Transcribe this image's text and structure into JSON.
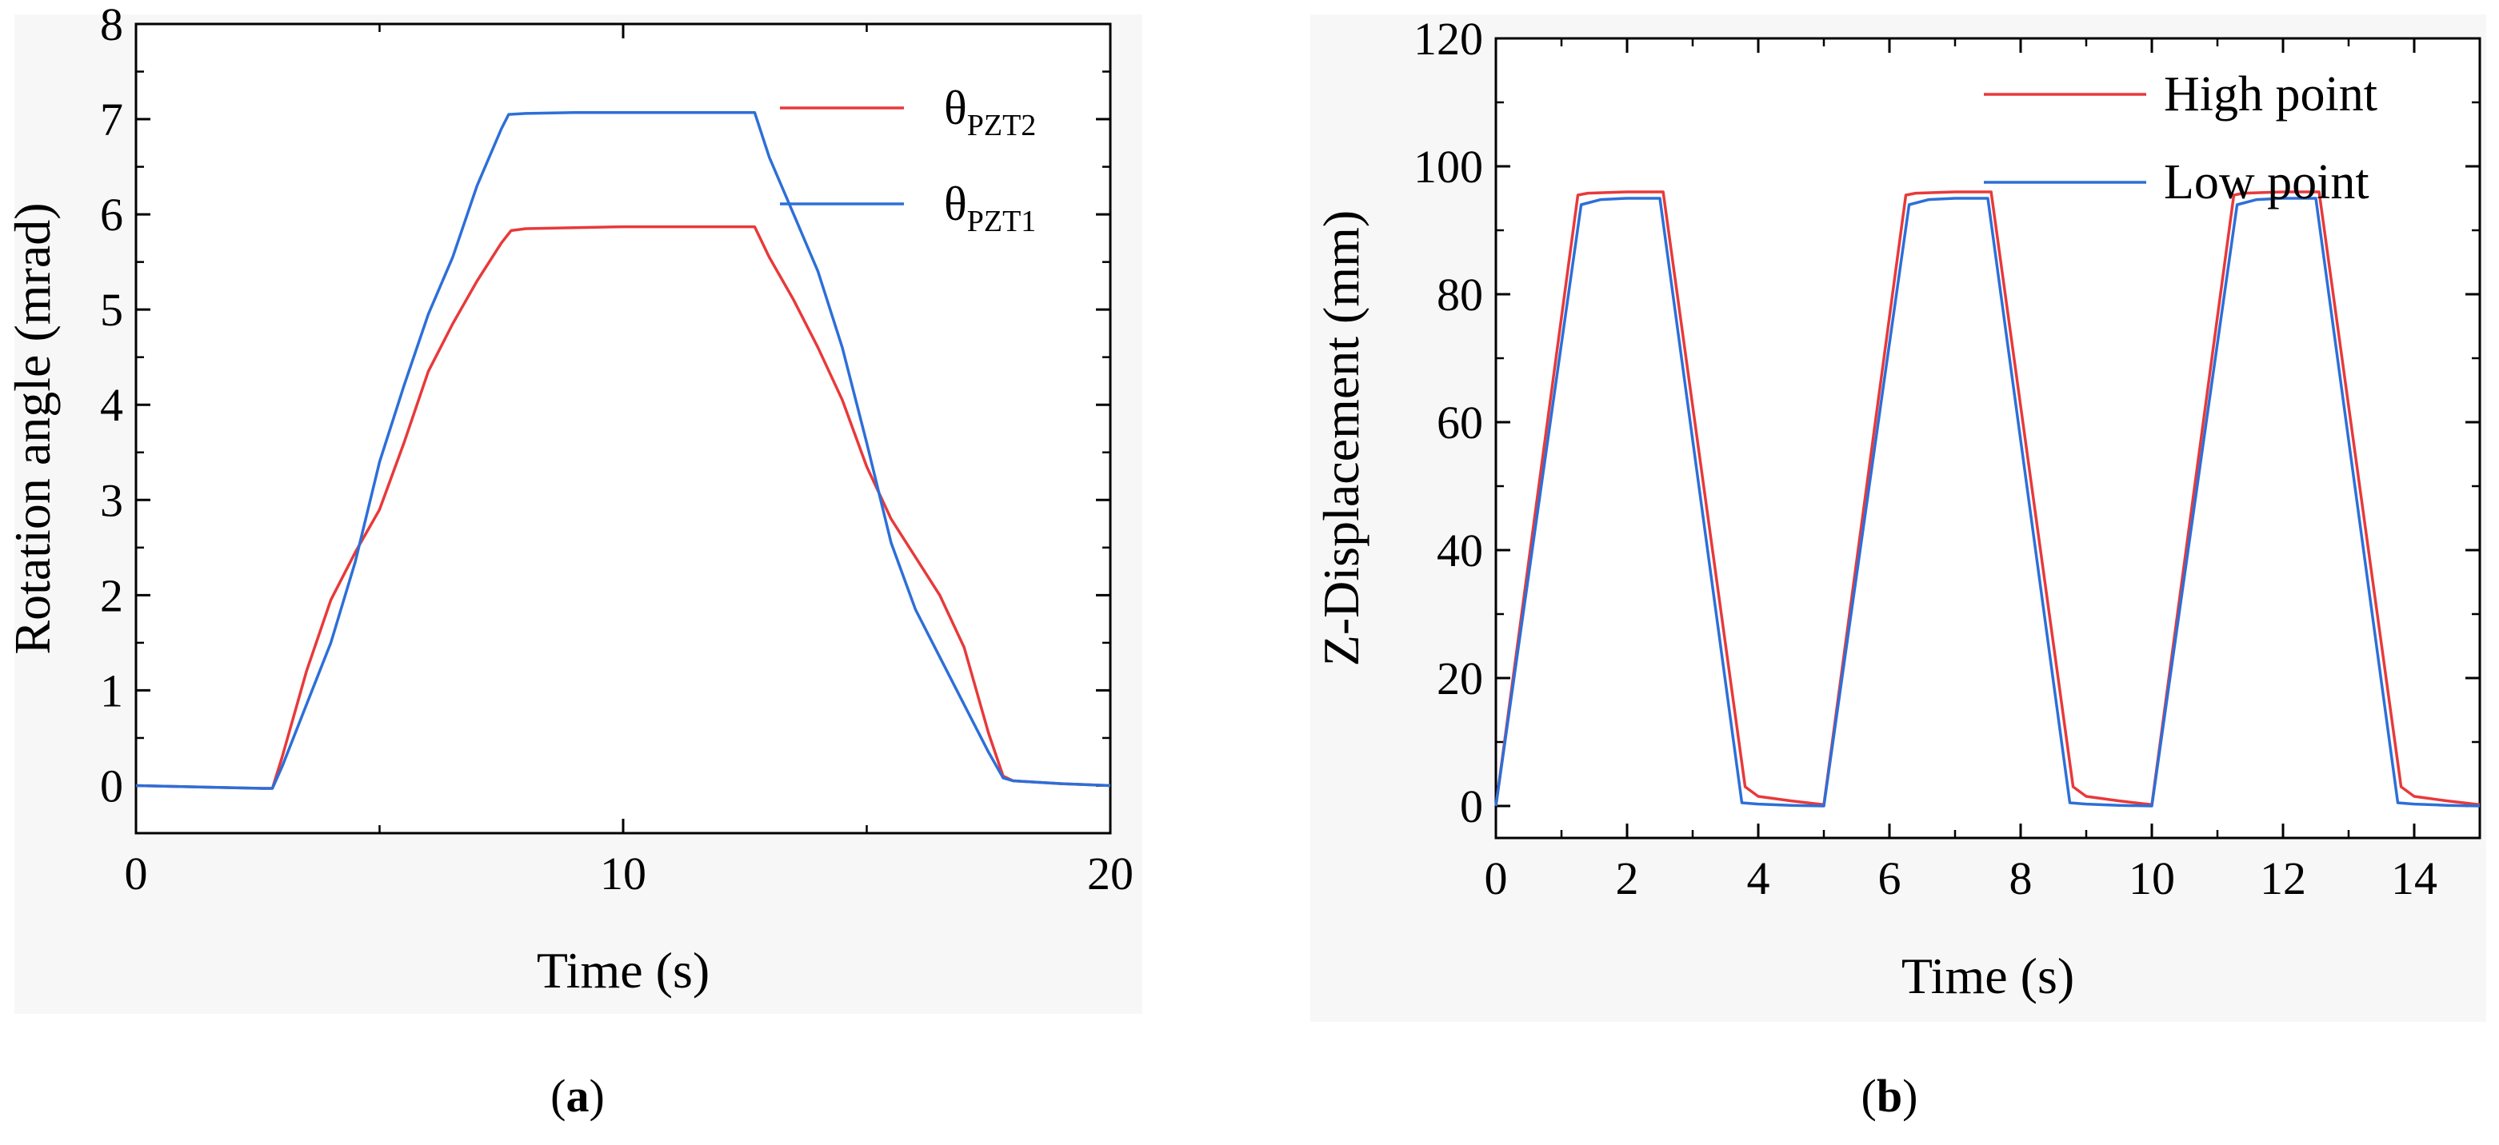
{
  "figure": {
    "caption_a": {
      "open": "(",
      "letter": "a",
      "close": ")"
    },
    "caption_b": {
      "open": "(",
      "letter": "b",
      "close": ")"
    }
  },
  "chart_data": [
    {
      "id": "a",
      "type": "line",
      "xlabel": "Time (s)",
      "ylabel": "Rotation angle (mrad)",
      "xlim": [
        0,
        20
      ],
      "ylim": [
        -0.5,
        8
      ],
      "xticks": [
        0,
        10,
        20
      ],
      "yticks": [
        0,
        1,
        2,
        3,
        4,
        5,
        6,
        7,
        8
      ],
      "grid": false,
      "legend_position": "top-right",
      "series": [
        {
          "name": "θPZT2",
          "label_main": "θ",
          "label_sub": "PZT2",
          "color": "#e8393a",
          "x": [
            0,
            2.6,
            2.8,
            3.0,
            3.5,
            4.0,
            4.5,
            5.0,
            5.5,
            6.0,
            6.5,
            7.0,
            7.5,
            7.7,
            8.0,
            9.0,
            10.0,
            11.0,
            12.0,
            12.7,
            13.0,
            13.5,
            14.0,
            14.5,
            15.0,
            15.5,
            16.0,
            16.5,
            17.0,
            17.5,
            17.8,
            18.0,
            19.0,
            20.0
          ],
          "y": [
            0,
            -0.03,
            -0.03,
            0.3,
            1.2,
            1.95,
            2.45,
            2.9,
            3.6,
            4.35,
            4.85,
            5.3,
            5.7,
            5.83,
            5.85,
            5.86,
            5.87,
            5.87,
            5.87,
            5.87,
            5.55,
            5.1,
            4.6,
            4.05,
            3.35,
            2.8,
            2.4,
            2.0,
            1.45,
            0.55,
            0.1,
            0.05,
            0.02,
            0
          ]
        },
        {
          "name": "θPZT1",
          "label_main": "θ",
          "label_sub": "PZT1",
          "color": "#2d6fd8",
          "x": [
            0,
            2.6,
            2.8,
            3.0,
            3.5,
            4.0,
            4.5,
            5.0,
            5.5,
            6.0,
            6.5,
            7.0,
            7.5,
            7.65,
            8.0,
            9.0,
            10.0,
            11.0,
            12.0,
            12.7,
            13.0,
            13.5,
            14.0,
            14.5,
            15.0,
            15.5,
            16.0,
            16.5,
            17.0,
            17.5,
            17.8,
            18.0,
            19.0,
            20.0
          ],
          "y": [
            0,
            -0.03,
            -0.03,
            0.2,
            0.85,
            1.5,
            2.35,
            3.4,
            4.2,
            4.95,
            5.55,
            6.3,
            6.9,
            7.05,
            7.06,
            7.07,
            7.07,
            7.07,
            7.07,
            7.07,
            6.6,
            6.0,
            5.4,
            4.6,
            3.6,
            2.55,
            1.85,
            1.35,
            0.85,
            0.35,
            0.08,
            0.05,
            0.02,
            0
          ]
        }
      ]
    },
    {
      "id": "b",
      "type": "line",
      "xlabel": "Time (s)",
      "ylabel": "Z-Displacement (mm)",
      "xlim": [
        0,
        15
      ],
      "ylim": [
        -5,
        120
      ],
      "xticks": [
        0,
        2,
        4,
        6,
        8,
        10,
        12,
        14
      ],
      "yticks": [
        0,
        20,
        40,
        60,
        80,
        100,
        120
      ],
      "grid": false,
      "legend_position": "top-right",
      "series": [
        {
          "name": "High point",
          "label_main": "High point",
          "label_sub": "",
          "color": "#e8393a",
          "x": [
            0,
            1.25,
            1.4,
            2.0,
            2.55,
            3.8,
            4.0,
            4.5,
            5.0,
            6.25,
            6.4,
            7.0,
            7.55,
            8.8,
            9.0,
            9.5,
            10.0,
            11.25,
            11.4,
            12.0,
            12.55,
            13.8,
            14.0,
            14.5,
            15.0
          ],
          "y": [
            0,
            95.5,
            95.8,
            96,
            96,
            3,
            1.5,
            0.8,
            0.2,
            95.5,
            95.8,
            96,
            96,
            3,
            1.5,
            0.8,
            0.2,
            95.5,
            95.8,
            96,
            96,
            3,
            1.5,
            0.8,
            0.2
          ]
        },
        {
          "name": "Low point",
          "label_main": "Low point",
          "label_sub": "",
          "color": "#2d6fd8",
          "x": [
            0,
            1.3,
            1.6,
            2.0,
            2.5,
            3.75,
            4.0,
            4.5,
            5.0,
            6.3,
            6.6,
            7.0,
            7.5,
            8.75,
            9.0,
            9.5,
            10.0,
            11.3,
            11.6,
            12.0,
            12.5,
            13.75,
            14.0,
            14.5,
            15.0
          ],
          "y": [
            0,
            94,
            94.8,
            95,
            95,
            0.5,
            0.3,
            0.1,
            0,
            94,
            94.8,
            95,
            95,
            0.5,
            0.3,
            0.1,
            0,
            94,
            94.8,
            95,
            95,
            0.5,
            0.3,
            0.1,
            0
          ]
        }
      ]
    }
  ]
}
